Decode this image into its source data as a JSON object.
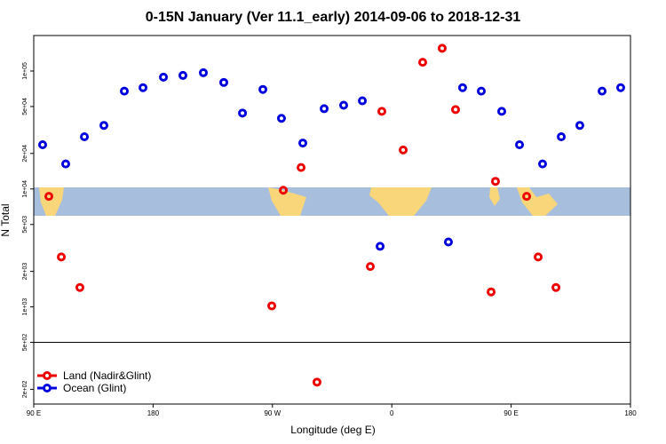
{
  "chart_data": {
    "type": "scatter",
    "title": "0-15N January (Ver 11.1_early)   2014-09-06 to 2018-12-31",
    "x_label": "Longitude (deg E)",
    "y_label": "N Total",
    "log_y": true,
    "xlim": [
      90,
      540
    ],
    "ylim": [
      150,
      200000
    ],
    "xticks": [
      {
        "value": 90,
        "label": "90 E"
      },
      {
        "value": 180,
        "label": "180"
      },
      {
        "value": 270,
        "label": "90 W"
      },
      {
        "value": 360,
        "label": "0"
      },
      {
        "value": 450,
        "label": "90 E"
      },
      {
        "value": 540,
        "label": "180"
      }
    ],
    "yticks": [
      {
        "value": 200,
        "label": "2e+02"
      },
      {
        "value": 500,
        "label": "5e+02"
      },
      {
        "value": 1000,
        "label": "1e+03"
      },
      {
        "value": 2000,
        "label": "2e+03"
      },
      {
        "value": 5000,
        "label": "5e+03"
      },
      {
        "value": 10000,
        "label": "1e+04"
      },
      {
        "value": 20000,
        "label": "2e+04"
      },
      {
        "value": 50000,
        "label": "5e+04"
      },
      {
        "value": 100000,
        "label": "1e+05"
      }
    ],
    "hline": 500,
    "legend": "bottom-left",
    "series": [
      {
        "name": "Land (Nadir&Glint)",
        "color": "#ee0000",
        "x": [
          101.4,
          110.8,
          124.8,
          269.5,
          278.2,
          291.6,
          303.6,
          343.8,
          352.5,
          368.6,
          383.3,
          398.0,
          408.1,
          434.9,
          438.2,
          461.7,
          470.4,
          483.8
        ],
        "values": [
          8650,
          2650,
          1460,
          1020,
          9750,
          15200,
          230,
          2200,
          45500,
          21400,
          118600,
          156000,
          47100,
          1340,
          11600,
          8650,
          2650,
          1460
        ]
      },
      {
        "name": "Ocean (Glint)",
        "color": "#0000dd",
        "x": [
          96.7,
          114.1,
          128.2,
          142.9,
          158.3,
          172.4,
          187.8,
          202.5,
          217.9,
          233.3,
          247.4,
          262.8,
          276.8,
          292.9,
          309.0,
          323.7,
          337.8,
          351.2,
          402.7,
          413.4,
          427.5,
          442.9,
          456.3,
          473.7,
          487.8,
          501.8,
          518.6,
          532.6
        ],
        "values": [
          23700,
          16300,
          27700,
          34600,
          67500,
          72200,
          88700,
          91800,
          96700,
          80000,
          44000,
          69800,
          39700,
          24500,
          47900,
          51300,
          55900,
          3260,
          3550,
          72200,
          67500,
          45500,
          23700,
          16300,
          27700,
          34600,
          67500,
          72200
        ]
      }
    ]
  }
}
